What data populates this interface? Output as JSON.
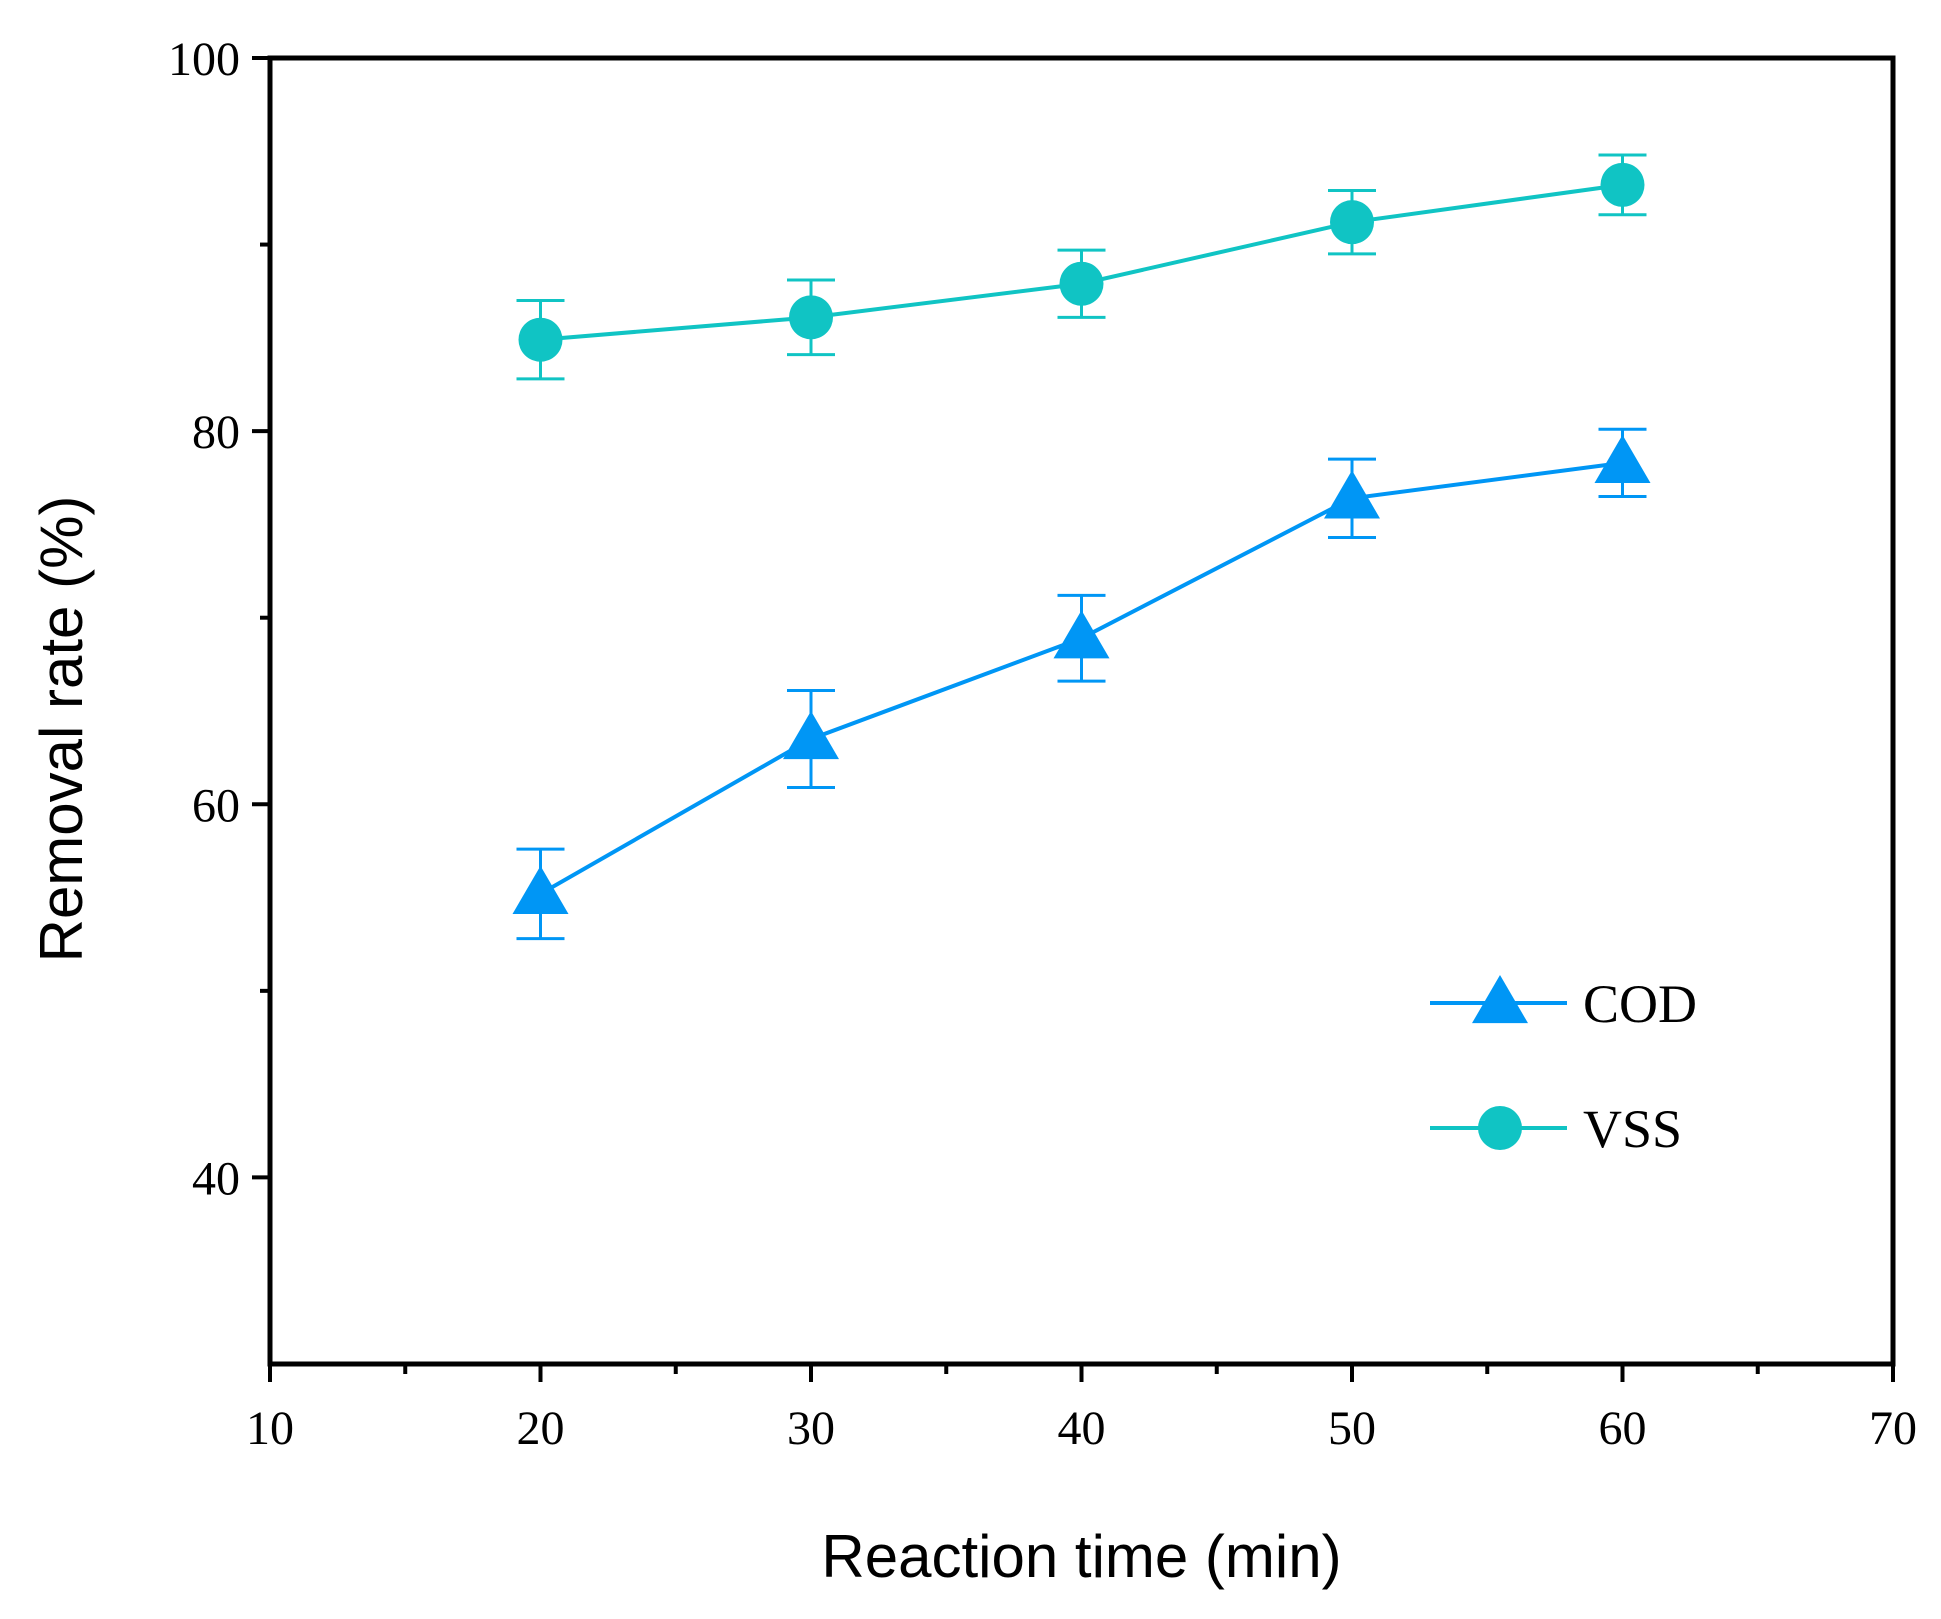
{
  "chart_data": {
    "type": "line",
    "xlabel": "Reaction time (min)",
    "ylabel": "Removal rate (%)",
    "xlim": [
      10,
      70
    ],
    "ylim": [
      30,
      100
    ],
    "x_major_ticks": [
      10,
      20,
      30,
      40,
      50,
      60,
      70
    ],
    "x_minor_ticks": [
      15,
      25,
      35,
      45,
      55,
      65
    ],
    "y_major_ticks": [
      40,
      60,
      80,
      100
    ],
    "y_minor_ticks": [
      50,
      70,
      90
    ],
    "x_tick_labels": [
      "10",
      "20",
      "30",
      "40",
      "50",
      "60",
      "70"
    ],
    "y_tick_labels": [
      "40",
      "60",
      "80",
      "100"
    ],
    "legend_position": "lower-right",
    "series": [
      {
        "name": "COD",
        "marker": "triangle",
        "color": "#0096F5",
        "x": [
          20,
          30,
          40,
          50,
          60
        ],
        "y": [
          55.2,
          63.5,
          68.9,
          76.4,
          78.3
        ],
        "err": [
          2.4,
          2.6,
          2.3,
          2.1,
          1.8
        ]
      },
      {
        "name": "VSS",
        "marker": "circle",
        "color": "#10C4C4",
        "x": [
          20,
          30,
          40,
          50,
          60
        ],
        "y": [
          84.9,
          86.1,
          87.9,
          91.2,
          93.2
        ],
        "err": [
          2.1,
          2.0,
          1.8,
          1.7,
          1.6
        ]
      }
    ]
  }
}
